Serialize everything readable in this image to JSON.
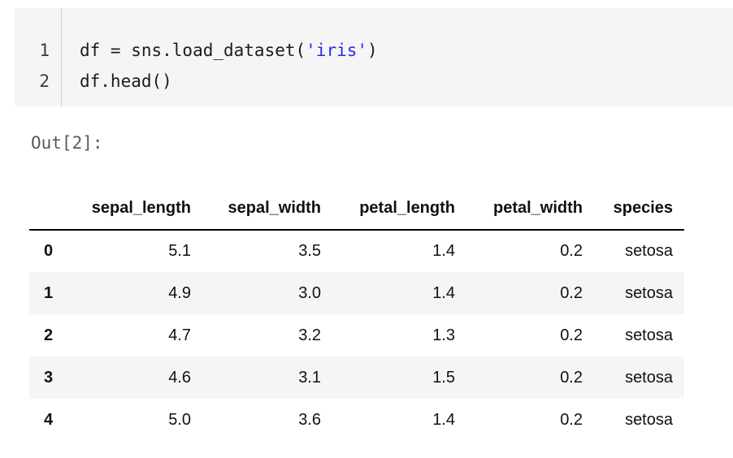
{
  "code_cell": {
    "line1": {
      "number": "1",
      "pre": "df = sns.load_dataset(",
      "string": "'iris'",
      "post": ")"
    },
    "line2": {
      "number": "2",
      "text": "df.head()"
    }
  },
  "output": {
    "label": "Out[2]:"
  },
  "table": {
    "columns": [
      "sepal_length",
      "sepal_width",
      "petal_length",
      "petal_width",
      "species"
    ],
    "rows": [
      {
        "index": "0",
        "values": [
          "5.1",
          "3.5",
          "1.4",
          "0.2",
          "setosa"
        ]
      },
      {
        "index": "1",
        "values": [
          "4.9",
          "3.0",
          "1.4",
          "0.2",
          "setosa"
        ]
      },
      {
        "index": "2",
        "values": [
          "4.7",
          "3.2",
          "1.3",
          "0.2",
          "setosa"
        ]
      },
      {
        "index": "3",
        "values": [
          "4.6",
          "3.1",
          "1.5",
          "0.2",
          "setosa"
        ]
      },
      {
        "index": "4",
        "values": [
          "5.0",
          "3.6",
          "1.4",
          "0.2",
          "setosa"
        ]
      }
    ]
  },
  "colors": {
    "string_token": "#2b2bee",
    "cell_background": "#f5f5f5",
    "stripe_background": "#f5f5f5",
    "header_border": "#000000"
  }
}
